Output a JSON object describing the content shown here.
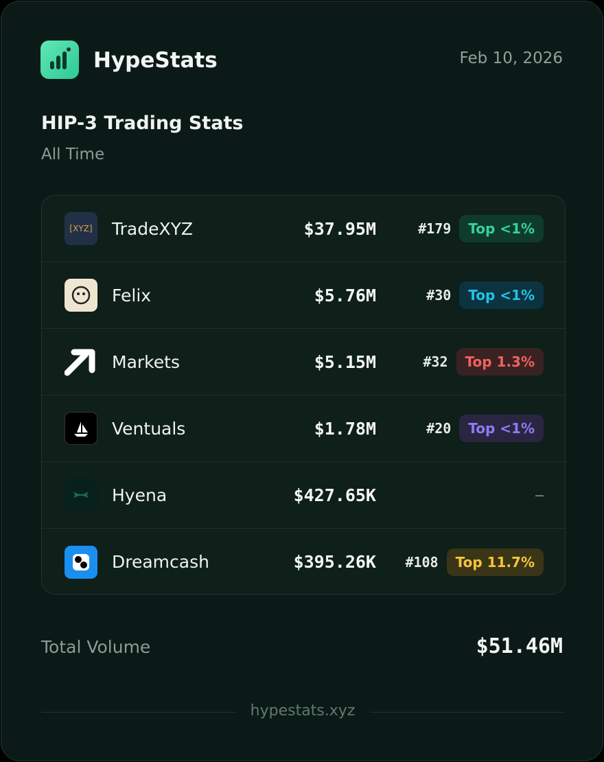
{
  "header": {
    "brand": "HypeStats",
    "date": "Feb 10, 2026"
  },
  "title": "HIP-3 Trading Stats",
  "subtitle": "All Time",
  "rows": [
    {
      "name": "TradeXYZ",
      "logo_text": "[XYZ]",
      "volume": "$37.95M",
      "rank": "#179",
      "badge": "Top <1%"
    },
    {
      "name": "Felix",
      "volume": "$5.76M",
      "rank": "#30",
      "badge": "Top <1%"
    },
    {
      "name": "Markets",
      "volume": "$5.15M",
      "rank": "#32",
      "badge": "Top 1.3%"
    },
    {
      "name": "Ventuals",
      "volume": "$1.78M",
      "rank": "#20",
      "badge": "Top <1%"
    },
    {
      "name": "Hyena",
      "volume": "$427.65K",
      "rank": "—"
    },
    {
      "name": "Dreamcash",
      "volume": "$395.26K",
      "rank": "#108",
      "badge": "Top 11.7%"
    }
  ],
  "total": {
    "label": "Total Volume",
    "value": "$51.46M"
  },
  "footer": "hypestats.xyz"
}
